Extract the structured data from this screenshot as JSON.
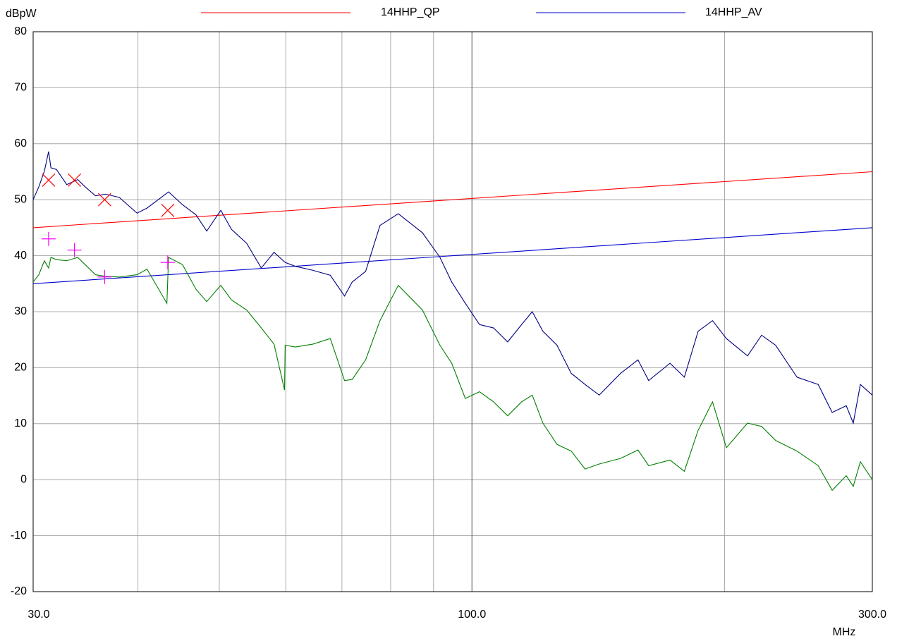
{
  "chart_data": {
    "type": "line",
    "ylabel": "dBpW",
    "xlabel": "MHz",
    "xscale": "log",
    "xlim": [
      30,
      300
    ],
    "ylim": [
      -20,
      80
    ],
    "xticks": [
      {
        "value": 30,
        "label": "30.0"
      },
      {
        "value": 100,
        "label": "100.0"
      },
      {
        "value": 300,
        "label": "300.0"
      }
    ],
    "xminor": [
      40,
      50,
      60,
      70,
      80,
      90,
      200
    ],
    "yticks": [
      -20,
      -10,
      0,
      10,
      20,
      30,
      40,
      50,
      60,
      70,
      80
    ],
    "grid": true,
    "series": [
      {
        "name": "14HHP_QP",
        "color": "#ff0000",
        "x": [
          30,
          300
        ],
        "values": [
          45,
          55
        ]
      },
      {
        "name": "14HHP_AV",
        "color": "#0000cc",
        "x": [
          30,
          300
        ],
        "values": [
          35,
          45
        ]
      },
      {
        "color": "#000080",
        "x": [
          30,
          30.47,
          30.94,
          31.3,
          31.5,
          31.98,
          32.9,
          33.9,
          34.6,
          35.6,
          36.6,
          38.0,
          39.9,
          41.0,
          43.5,
          45.2,
          46.9,
          48.3,
          50.2,
          51.7,
          53.9,
          56.1,
          58.1,
          59.9,
          61.6,
          64.6,
          67.8,
          70.5,
          72.0,
          74.7,
          77.7,
          81.7,
          87.3,
          91.6,
          94.6,
          98.2,
          102.1,
          106.1,
          110.3,
          114.6,
          118.0,
          121.5,
          126.3,
          131.3,
          136.4,
          141.8,
          150.4,
          157.7,
          162.4,
          172.2,
          179.1,
          186.0,
          193.5,
          201.0,
          213.0,
          221.4,
          230.1,
          244.0,
          258.6,
          268.7,
          279.3,
          284.7,
          290.3,
          300
        ],
        "values": [
          50.0,
          52.3,
          55.1,
          58.6,
          55.7,
          55.4,
          52.7,
          53.6,
          52.3,
          50.7,
          51.0,
          50.4,
          47.6,
          48.5,
          51.4,
          49.1,
          47.3,
          44.4,
          48.1,
          44.7,
          42.2,
          37.8,
          40.6,
          38.8,
          38.1,
          37.4,
          36.5,
          32.8,
          35.3,
          37.2,
          45.4,
          47.5,
          44.1,
          39.7,
          35.3,
          31.5,
          27.7,
          27.1,
          24.6,
          27.7,
          30.0,
          26.5,
          24.0,
          19.0,
          17.0,
          15.1,
          19.0,
          21.4,
          17.7,
          20.8,
          18.3,
          26.5,
          28.4,
          25.2,
          22.1,
          25.8,
          24.0,
          18.3,
          17.0,
          12.0,
          13.2,
          10.1,
          17.0,
          15.1
        ]
      },
      {
        "color": "#008000",
        "x": [
          30,
          30.47,
          30.94,
          31.3,
          31.5,
          31.98,
          32.9,
          33.9,
          34.6,
          35.6,
          36.6,
          38.0,
          39.9,
          41.0,
          43.3,
          43.5,
          45.2,
          46.9,
          48.3,
          50.2,
          51.7,
          53.9,
          56.1,
          58.1,
          59.8,
          59.9,
          61.6,
          64.6,
          67.8,
          70.5,
          72.0,
          74.7,
          77.7,
          81.7,
          87.3,
          91.6,
          94.6,
          98.2,
          102.1,
          106.1,
          110.3,
          114.6,
          118.0,
          121.5,
          126.3,
          131.3,
          136.4,
          141.8,
          150.4,
          157.7,
          162.4,
          172.2,
          179.1,
          186.0,
          193.5,
          201.0,
          213.0,
          221.4,
          230.1,
          244.0,
          258.6,
          268.7,
          279.3,
          284.7,
          290.3,
          300
        ],
        "values": [
          35.3,
          36.6,
          39.1,
          37.8,
          39.7,
          39.3,
          39.1,
          39.7,
          38.4,
          36.6,
          36.3,
          36.2,
          36.6,
          37.6,
          31.5,
          39.7,
          38.4,
          34.0,
          31.8,
          34.7,
          32.1,
          30.3,
          27.1,
          24.2,
          16.0,
          24.0,
          23.7,
          24.2,
          25.2,
          17.7,
          17.9,
          21.4,
          28.4,
          34.7,
          30.3,
          24.0,
          20.8,
          14.5,
          15.7,
          13.9,
          11.4,
          13.9,
          15.1,
          10.1,
          6.3,
          5.1,
          1.9,
          2.8,
          3.8,
          5.3,
          2.5,
          3.5,
          1.5,
          8.8,
          13.9,
          5.7,
          10.1,
          9.5,
          7.0,
          5.1,
          2.5,
          -1.9,
          0.7,
          -1.2,
          3.2,
          0.0
        ]
      },
      {
        "marker": "x",
        "color": "#ff0000",
        "x": [
          31.3,
          33.6,
          36.5,
          43.4
        ],
        "values": [
          53.5,
          53.5,
          50.0,
          48.1
        ]
      },
      {
        "marker": "+",
        "color": "#ff00ff",
        "x": [
          31.3,
          33.6,
          36.5,
          43.4
        ],
        "values": [
          43.0,
          41.0,
          36.2,
          38.8
        ]
      }
    ]
  }
}
